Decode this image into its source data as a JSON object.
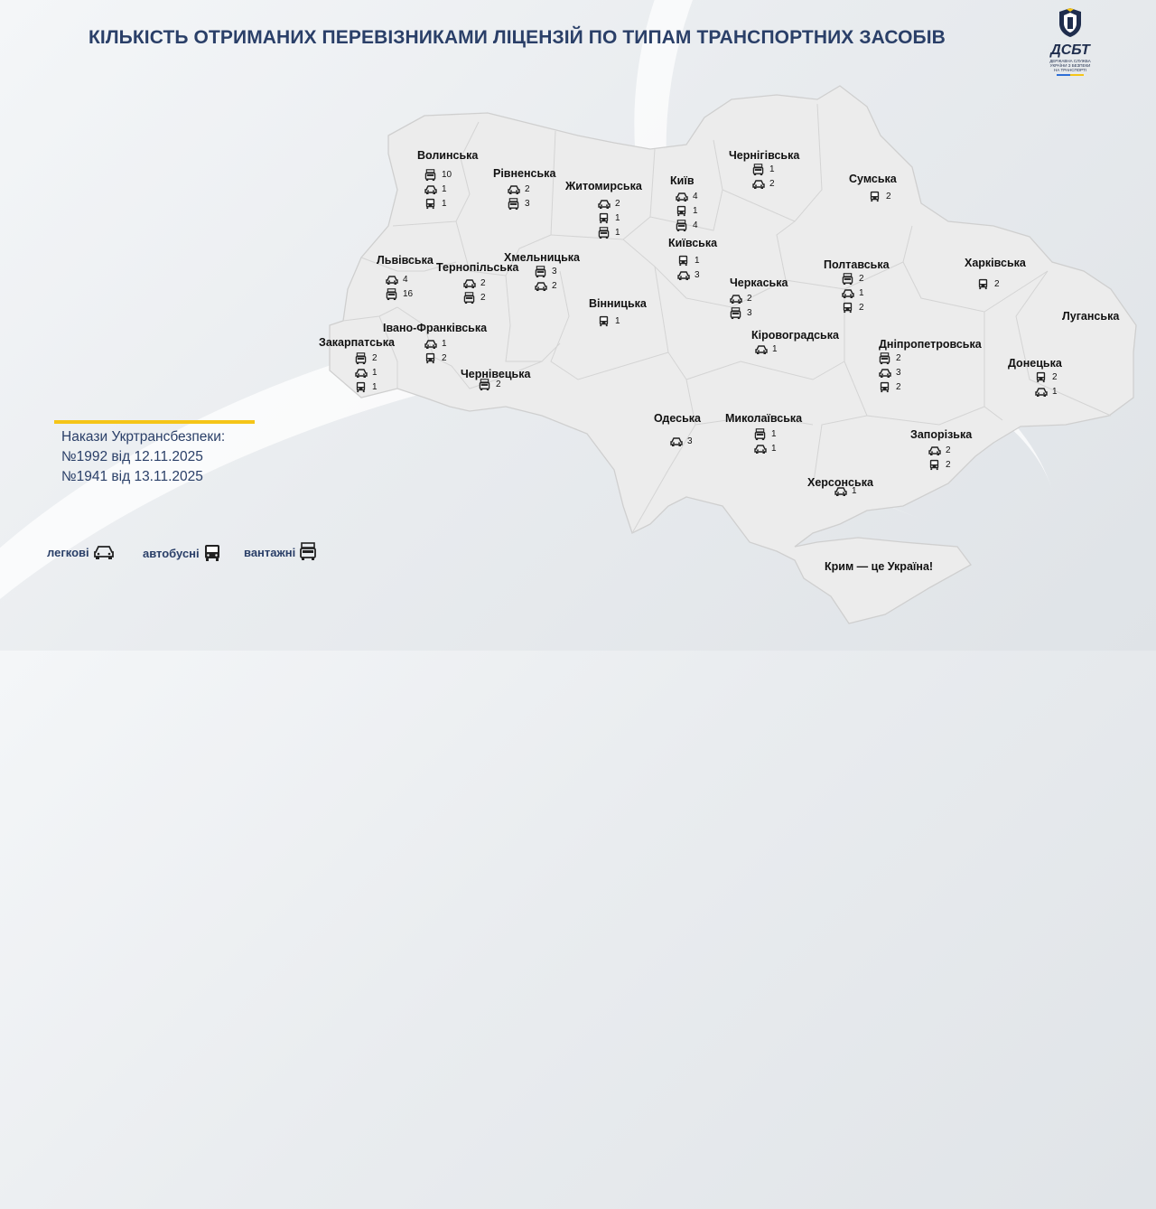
{
  "title": "КІЛЬКІСТЬ ОТРИМАНИХ ПЕРЕВІЗНИКАМИ ЛІЦЕНЗІЙ ПО ТИПАМ ТРАНСПОРТНИХ ЗАСОБІВ",
  "logo": {
    "brand": "ДСБТ",
    "subtitle_lines": [
      "ДЕРЖАВНА СЛУЖБА",
      "УКРАЇНИ З БЕЗПЕКИ",
      "НА ТРАНСПОРТІ"
    ]
  },
  "orders": {
    "heading": "Накази Укртрансбезпеки:",
    "line1": "№1992 від 12.11.2025",
    "line2": "№1941 від 13.11.2025"
  },
  "legend": {
    "cars": "легкові",
    "buses": "автобусні",
    "trucks": "вантажні"
  },
  "crimea_note": "Крим — це Україна!",
  "icon_colors": {
    "icon": "#222222",
    "title": "#2a3f68",
    "accent": "#f5c518"
  },
  "regions": [
    {
      "key": "volyn",
      "name": "Волинська",
      "rows": [
        {
          "type": "truck",
          "icon": "truck-icon",
          "value": "10"
        },
        {
          "type": "car",
          "icon": "car-icon",
          "value": "1"
        },
        {
          "type": "bus",
          "icon": "bus-icon",
          "value": "1"
        }
      ]
    },
    {
      "key": "rivne",
      "name": "Рівненська",
      "rows": [
        {
          "type": "car",
          "icon": "car-icon",
          "value": "2"
        },
        {
          "type": "truck",
          "icon": "truck-icon",
          "value": "3"
        }
      ]
    },
    {
      "key": "zhytomyr",
      "name": "Житомирська",
      "rows": [
        {
          "type": "car",
          "icon": "car-icon",
          "value": "2"
        },
        {
          "type": "bus",
          "icon": "bus-icon",
          "value": "1"
        },
        {
          "type": "truck",
          "icon": "truck-icon",
          "value": "1"
        }
      ]
    },
    {
      "key": "kyiv_city",
      "name": "Київ",
      "rows": [
        {
          "type": "car",
          "icon": "car-icon",
          "value": "4"
        },
        {
          "type": "bus",
          "icon": "bus-icon",
          "value": "1"
        },
        {
          "type": "truck",
          "icon": "truck-icon",
          "value": "4"
        }
      ]
    },
    {
      "key": "kyiv_obl",
      "name": "Київська",
      "rows": [
        {
          "type": "bus",
          "icon": "bus-icon",
          "value": "1"
        },
        {
          "type": "car",
          "icon": "car-icon",
          "value": "3"
        }
      ]
    },
    {
      "key": "chernihiv",
      "name": "Чернігівська",
      "rows": [
        {
          "type": "truck",
          "icon": "truck-icon",
          "value": "1"
        },
        {
          "type": "car",
          "icon": "car-icon",
          "value": "2"
        }
      ]
    },
    {
      "key": "sumy",
      "name": "Сумська",
      "rows": [
        {
          "type": "bus",
          "icon": "bus-icon",
          "value": "2"
        }
      ]
    },
    {
      "key": "lviv",
      "name": "Львівська",
      "rows": [
        {
          "type": "car",
          "icon": "car-icon",
          "value": "4"
        },
        {
          "type": "truck",
          "icon": "truck-icon",
          "value": "16"
        }
      ]
    },
    {
      "key": "ternopil",
      "name": "Тернопільська",
      "rows": [
        {
          "type": "car",
          "icon": "car-icon",
          "value": "2"
        },
        {
          "type": "truck",
          "icon": "truck-icon",
          "value": "2"
        }
      ]
    },
    {
      "key": "khmelnytskyi",
      "name": "Хмельницька",
      "rows": [
        {
          "type": "truck",
          "icon": "truck-icon",
          "value": "3"
        },
        {
          "type": "car",
          "icon": "car-icon",
          "value": "2"
        }
      ]
    },
    {
      "key": "vinnytsia",
      "name": "Вінницька",
      "rows": [
        {
          "type": "bus",
          "icon": "bus-icon",
          "value": "1"
        }
      ]
    },
    {
      "key": "cherkasy",
      "name": "Черкаська",
      "rows": [
        {
          "type": "car",
          "icon": "car-icon",
          "value": "2"
        },
        {
          "type": "truck",
          "icon": "truck-icon",
          "value": "3"
        }
      ]
    },
    {
      "key": "poltava",
      "name": "Полтавська",
      "rows": [
        {
          "type": "truck",
          "icon": "truck-icon",
          "value": "2"
        },
        {
          "type": "car",
          "icon": "car-icon",
          "value": "1"
        },
        {
          "type": "bus",
          "icon": "bus-icon",
          "value": "2"
        }
      ]
    },
    {
      "key": "kharkiv",
      "name": "Харківська",
      "rows": [
        {
          "type": "bus",
          "icon": "bus-icon",
          "value": "2"
        }
      ]
    },
    {
      "key": "luhansk",
      "name": "Луганська",
      "rows": []
    },
    {
      "key": "zakarpattia",
      "name": "Закарпатська",
      "rows": [
        {
          "type": "truck",
          "icon": "truck-icon",
          "value": "2"
        },
        {
          "type": "car",
          "icon": "car-icon",
          "value": "1"
        },
        {
          "type": "bus",
          "icon": "bus-icon",
          "value": "1"
        }
      ]
    },
    {
      "key": "ivano_frankivsk",
      "name": "Івано-Франківська",
      "rows": [
        {
          "type": "car",
          "icon": "car-icon",
          "value": "1"
        },
        {
          "type": "bus",
          "icon": "bus-icon",
          "value": "2"
        }
      ]
    },
    {
      "key": "chernivtsi",
      "name": "Чернівецька",
      "rows": [
        {
          "type": "truck",
          "icon": "truck-icon",
          "value": "2"
        }
      ]
    },
    {
      "key": "kirovohrad",
      "name": "Кіровоградська",
      "rows": [
        {
          "type": "car",
          "icon": "car-icon",
          "value": "1"
        }
      ]
    },
    {
      "key": "dnipro",
      "name": "Дніпропетровська",
      "rows": [
        {
          "type": "truck",
          "icon": "truck-icon",
          "value": "2"
        },
        {
          "type": "car",
          "icon": "car-icon",
          "value": "3"
        },
        {
          "type": "bus",
          "icon": "bus-icon",
          "value": "2"
        }
      ]
    },
    {
      "key": "donetsk",
      "name": "Донецька",
      "rows": [
        {
          "type": "bus",
          "icon": "bus-icon",
          "value": "2"
        },
        {
          "type": "car",
          "icon": "car-icon",
          "value": "1"
        }
      ]
    },
    {
      "key": "odesa",
      "name": "Одеська",
      "rows": [
        {
          "type": "car",
          "icon": "car-icon",
          "value": "3"
        }
      ]
    },
    {
      "key": "mykolaiv",
      "name": "Миколаївська",
      "rows": [
        {
          "type": "truck",
          "icon": "truck-icon",
          "value": "1"
        },
        {
          "type": "car",
          "icon": "car-icon",
          "value": "1"
        }
      ]
    },
    {
      "key": "zaporizhzhia",
      "name": "Запорізька",
      "rows": [
        {
          "type": "car",
          "icon": "car-icon",
          "value": "2"
        },
        {
          "type": "bus",
          "icon": "bus-icon",
          "value": "2"
        }
      ]
    },
    {
      "key": "kherson",
      "name": "Херсонська",
      "rows": [
        {
          "type": "car",
          "icon": "car-icon",
          "value": "1"
        }
      ]
    }
  ]
}
